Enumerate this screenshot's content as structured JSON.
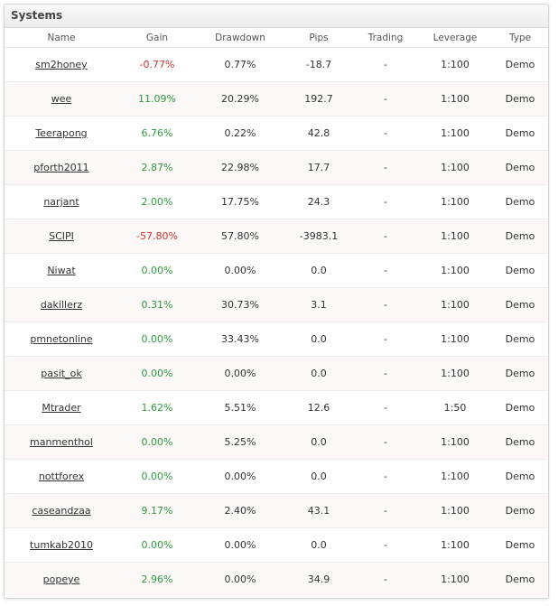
{
  "panel": {
    "title": "Systems"
  },
  "columns": {
    "name": "Name",
    "gain": "Gain",
    "drawdown": "Drawdown",
    "pips": "Pips",
    "trading": "Trading",
    "leverage": "Leverage",
    "type": "Type"
  },
  "colors": {
    "positive": "#2e9a3e",
    "negative": "#d9302c"
  },
  "rows": [
    {
      "name": "sm2honey",
      "gain": "-0.77%",
      "drawdown": "0.77%",
      "pips": "-18.7",
      "trading": "-",
      "leverage": "1:100",
      "type": "Demo"
    },
    {
      "name": "wee",
      "gain": "11.09%",
      "drawdown": "20.29%",
      "pips": "192.7",
      "trading": "-",
      "leverage": "1:100",
      "type": "Demo"
    },
    {
      "name": "Teerapong",
      "gain": "6.76%",
      "drawdown": "0.22%",
      "pips": "42.8",
      "trading": "-",
      "leverage": "1:100",
      "type": "Demo"
    },
    {
      "name": "pforth2011",
      "gain": "2.87%",
      "drawdown": "22.98%",
      "pips": "17.7",
      "trading": "-",
      "leverage": "1:100",
      "type": "Demo"
    },
    {
      "name": "narjant",
      "gain": "2.00%",
      "drawdown": "17.75%",
      "pips": "24.3",
      "trading": "-",
      "leverage": "1:100",
      "type": "Demo"
    },
    {
      "name": "SCIPI",
      "gain": "-57.80%",
      "drawdown": "57.80%",
      "pips": "-3983.1",
      "trading": "-",
      "leverage": "1:100",
      "type": "Demo"
    },
    {
      "name": "Niwat",
      "gain": "0.00%",
      "drawdown": "0.00%",
      "pips": "0.0",
      "trading": "-",
      "leverage": "1:100",
      "type": "Demo"
    },
    {
      "name": "dakillerz",
      "gain": "0.31%",
      "drawdown": "30.73%",
      "pips": "3.1",
      "trading": "-",
      "leverage": "1:100",
      "type": "Demo"
    },
    {
      "name": "pmnetonline",
      "gain": "0.00%",
      "drawdown": "33.43%",
      "pips": "0.0",
      "trading": "-",
      "leverage": "1:100",
      "type": "Demo"
    },
    {
      "name": "pasit_ok",
      "gain": "0.00%",
      "drawdown": "0.00%",
      "pips": "0.0",
      "trading": "-",
      "leverage": "1:100",
      "type": "Demo"
    },
    {
      "name": "Mtrader",
      "gain": "1.62%",
      "drawdown": "5.51%",
      "pips": "12.6",
      "trading": "-",
      "leverage": "1:50",
      "type": "Demo"
    },
    {
      "name": "manmenthol",
      "gain": "0.00%",
      "drawdown": "5.25%",
      "pips": "0.0",
      "trading": "-",
      "leverage": "1:100",
      "type": "Demo"
    },
    {
      "name": "nottforex",
      "gain": "0.00%",
      "drawdown": "0.00%",
      "pips": "0.0",
      "trading": "-",
      "leverage": "1:100",
      "type": "Demo"
    },
    {
      "name": "caseandzaa",
      "gain": "9.17%",
      "drawdown": "2.40%",
      "pips": "43.1",
      "trading": "-",
      "leverage": "1:100",
      "type": "Demo"
    },
    {
      "name": "tumkab2010",
      "gain": "0.00%",
      "drawdown": "0.00%",
      "pips": "0.0",
      "trading": "-",
      "leverage": "1:100",
      "type": "Demo"
    },
    {
      "name": "popeye",
      "gain": "2.96%",
      "drawdown": "0.00%",
      "pips": "34.9",
      "trading": "-",
      "leverage": "1:100",
      "type": "Demo"
    }
  ]
}
